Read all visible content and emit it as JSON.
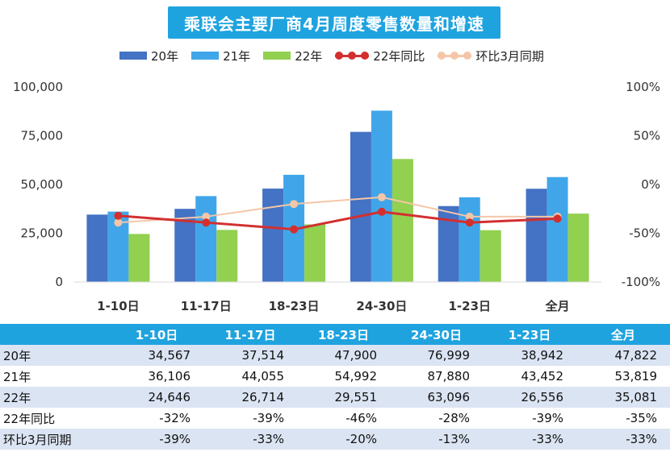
{
  "title": "乘联会主要厂商4月周度零售数量和增速",
  "legend": [
    {
      "label": "20年",
      "kind": "bar",
      "color": "#4472c4"
    },
    {
      "label": "21年",
      "kind": "bar",
      "color": "#41a6e9"
    },
    {
      "label": "22年",
      "kind": "bar",
      "color": "#92d050"
    },
    {
      "label": "22年同比",
      "kind": "line",
      "color": "#d32f2f"
    },
    {
      "label": "环比3月同期",
      "kind": "line",
      "color": "#f4c6a8"
    }
  ],
  "table": {
    "header": [
      "",
      "1-10日",
      "11-17日",
      "18-23日",
      "24-30日",
      "1-23日",
      "全月"
    ],
    "rows": [
      {
        "label": "20年",
        "values": [
          "34,567",
          "37,514",
          "47,900",
          "76,999",
          "38,942",
          "47,822"
        ]
      },
      {
        "label": "21年",
        "values": [
          "36,106",
          "44,055",
          "54,992",
          "87,880",
          "43,452",
          "53,819"
        ]
      },
      {
        "label": "22年",
        "values": [
          "24,646",
          "26,714",
          "29,551",
          "63,096",
          "26,556",
          "35,081"
        ]
      },
      {
        "label": "22年同比",
        "values": [
          "-32%",
          "-39%",
          "-46%",
          "-28%",
          "-39%",
          "-35%"
        ]
      },
      {
        "label": "环比3月同期",
        "values": [
          "-39%",
          "-33%",
          "-20%",
          "-13%",
          "-33%",
          "-33%"
        ]
      }
    ]
  },
  "chart_data": {
    "type": "bar",
    "title": "乘联会主要厂商4月周度零售数量和增速",
    "categories": [
      "1-10日",
      "11-17日",
      "18-23日",
      "24-30日",
      "1-23日",
      "全月"
    ],
    "series": [
      {
        "name": "20年",
        "type": "bar",
        "axis": "left",
        "color": "#4472c4",
        "values": [
          34567,
          37514,
          47900,
          76999,
          38942,
          47822
        ]
      },
      {
        "name": "21年",
        "type": "bar",
        "axis": "left",
        "color": "#41a6e9",
        "values": [
          36106,
          44055,
          54992,
          87880,
          43452,
          53819
        ]
      },
      {
        "name": "22年",
        "type": "bar",
        "axis": "left",
        "color": "#92d050",
        "values": [
          24646,
          26714,
          29551,
          63096,
          26556,
          35081
        ]
      },
      {
        "name": "22年同比",
        "type": "line",
        "axis": "right",
        "color": "#d32f2f",
        "values": [
          -32,
          -39,
          -46,
          -28,
          -39,
          -35
        ]
      },
      {
        "name": "环比3月同期",
        "type": "line",
        "axis": "right",
        "color": "#f4c6a8",
        "values": [
          -39,
          -33,
          -20,
          -13,
          -33,
          -33
        ]
      }
    ],
    "ylim": [
      0,
      100000
    ],
    "yticks": [
      "0",
      "25,000",
      "50,000",
      "75,000",
      "100,000"
    ],
    "y2lim": [
      -100,
      100
    ],
    "y2ticks": [
      "-100%",
      "-50%",
      "0%",
      "50%",
      "100%"
    ],
    "legend_position": "top",
    "grid": false
  }
}
